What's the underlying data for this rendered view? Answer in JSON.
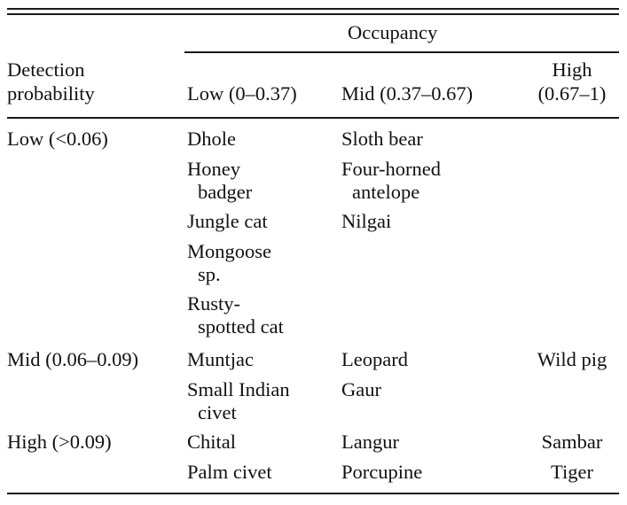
{
  "table": {
    "header": {
      "row_header_line1": "Detection",
      "row_header_line2": "probability",
      "group_header": "Occupancy",
      "col_low": "Low (0–0.37)",
      "col_mid": "Mid (0.37–0.67)",
      "col_high_line1": "High",
      "col_high_line2": "(0.67–1)"
    },
    "rows": [
      {
        "label": "Low (<0.06)",
        "low": [
          [
            "Dhole"
          ],
          [
            "Honey",
            "badger"
          ],
          [
            "Jungle cat"
          ],
          [
            "Mongoose",
            "sp."
          ],
          [
            "Rusty-",
            "spotted cat"
          ]
        ],
        "mid": [
          [
            "Sloth bear"
          ],
          [
            "Four-horned",
            "antelope"
          ],
          [
            "Nilgai"
          ]
        ],
        "high": []
      },
      {
        "label": "Mid (0.06–0.09)",
        "low": [
          [
            "Muntjac"
          ],
          [
            "Small Indian",
            "civet"
          ]
        ],
        "mid": [
          [
            "Leopard"
          ],
          [
            "Gaur"
          ]
        ],
        "high": [
          [
            "Wild pig"
          ]
        ]
      },
      {
        "label": "High (>0.09)",
        "low": [
          [
            "Chital"
          ],
          [
            "Palm civet"
          ]
        ],
        "mid": [
          [
            "Langur"
          ],
          [
            "Porcupine"
          ]
        ],
        "high": [
          [
            "Sambar"
          ],
          [
            "Tiger"
          ]
        ]
      }
    ]
  }
}
